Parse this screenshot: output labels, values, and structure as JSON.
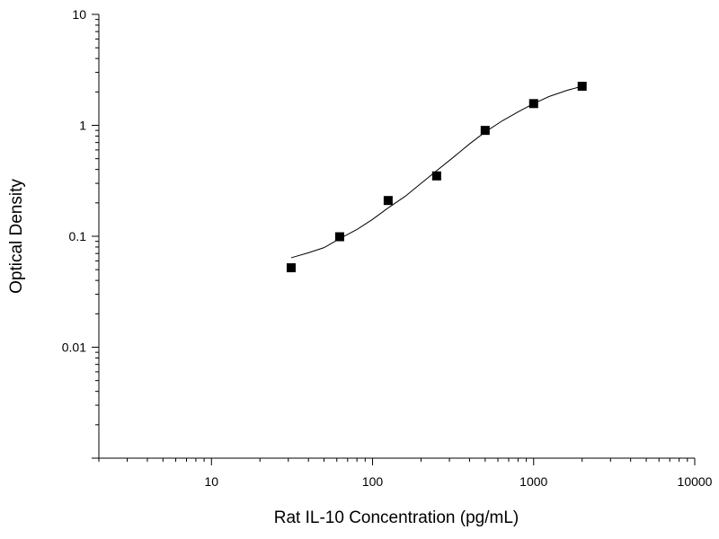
{
  "chart_data": {
    "type": "scatter",
    "title": "",
    "xlabel": "Rat IL-10 Concentration (pg/mL)",
    "ylabel": "Optical Density",
    "x_scale": "log",
    "y_scale": "log",
    "xlim": [
      2,
      10000
    ],
    "ylim": [
      0.001,
      10
    ],
    "x_tick_labels": [
      "10",
      "100",
      "1000",
      "10000"
    ],
    "y_tick_labels": [
      "0.01",
      "0.1",
      "1",
      "10"
    ],
    "grid": false,
    "legend": "none",
    "series": [
      {
        "type": "scatter",
        "marker": "square",
        "x": [
          31.25,
          62.5,
          125,
          250,
          500,
          1000,
          2000
        ],
        "y": [
          0.052,
          0.099,
          0.21,
          0.35,
          0.9,
          1.57,
          2.25
        ]
      },
      {
        "type": "line",
        "x": [
          31.25,
          40,
          50,
          62.5,
          80,
          100,
          125,
          160,
          200,
          250,
          320,
          400,
          500,
          640,
          800,
          1000,
          1250,
          1600,
          2000
        ],
        "y": [
          0.064,
          0.071,
          0.079,
          0.095,
          0.115,
          0.142,
          0.18,
          0.23,
          0.3,
          0.39,
          0.52,
          0.68,
          0.87,
          1.1,
          1.32,
          1.57,
          1.82,
          2.06,
          2.25
        ]
      }
    ],
    "colors": {
      "marker": "#000000",
      "curve": "#000000",
      "axis": "#000000"
    }
  }
}
